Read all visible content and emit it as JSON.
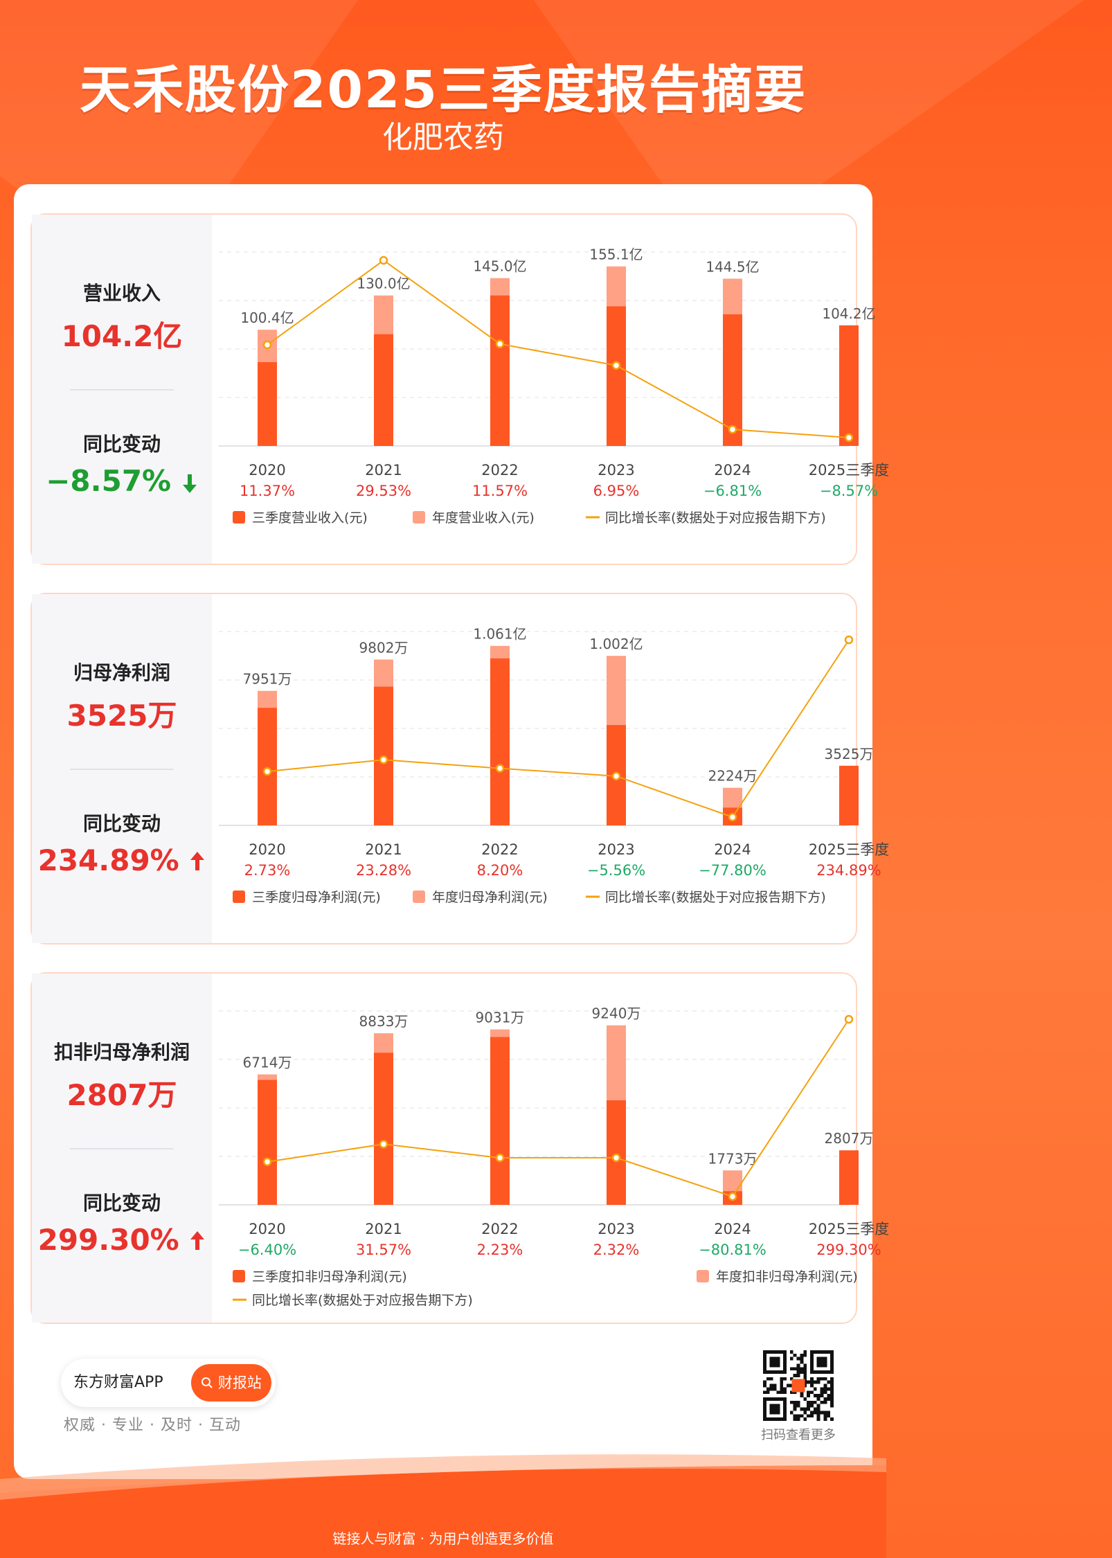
{
  "header": {
    "title": "天禾股份2025三季度报告摘要",
    "subtitle": "化肥农药"
  },
  "colors": {
    "q3": "#ff5722",
    "annual": "#ffa185",
    "line": "#f5a10c",
    "positive": "#e8322c",
    "negative": "#1fa967"
  },
  "sections": [
    {
      "label": "营业收入",
      "value": "104.2亿",
      "change_label": "同比变动",
      "change_value": "−8.57%",
      "change_arrow": "down"
    },
    {
      "label": "归母净利润",
      "value": "3525万",
      "change_label": "同比变动",
      "change_value": "234.89%",
      "change_arrow": "up"
    },
    {
      "label": "扣非归母净利润",
      "value": "2807万",
      "change_label": "同比变动",
      "change_value": "299.30%",
      "change_arrow": "up"
    }
  ],
  "chart_data": [
    {
      "type": "bar",
      "title": "营业收入",
      "categories": [
        "2020",
        "2021",
        "2022",
        "2023",
        "2024",
        "2025三季度"
      ],
      "unit": "亿元",
      "series": [
        {
          "name": "三季度营业收入(元)",
          "values": [
            72.4,
            96.5,
            130.0,
            120.6,
            113.7,
            104.2
          ]
        },
        {
          "name": "年度营业收入(元)",
          "values": [
            100.4,
            130.0,
            145.0,
            155.1,
            144.5,
            null
          ]
        }
      ],
      "data_labels": [
        "100.4亿",
        "130.0亿",
        "145.0亿",
        "155.1亿",
        "144.5亿",
        "104.2亿"
      ],
      "growth_line": {
        "name": "同比增长率(数据处于对应报告期下方)",
        "values": [
          11.37,
          29.53,
          11.57,
          6.95,
          -6.81,
          -8.57
        ]
      },
      "growth_labels": [
        "11.37%",
        "29.53%",
        "11.57%",
        "6.95%",
        "−6.81%",
        "−8.57%"
      ],
      "legend": [
        "三季度营业收入(元)",
        "年度营业收入(元)",
        "同比增长率(数据处于对应报告期下方)"
      ]
    },
    {
      "type": "bar",
      "title": "归母净利润",
      "categories": [
        "2020",
        "2021",
        "2022",
        "2023",
        "2024",
        "2025三季度"
      ],
      "unit": "万元",
      "series": [
        {
          "name": "三季度归母净利润(元)",
          "values": [
            6950,
            8200,
            9870,
            5930,
            1050,
            3525
          ]
        },
        {
          "name": "年度归母净利润(元)",
          "values": [
            7951,
            9802,
            10610,
            10020,
            2224,
            null
          ]
        }
      ],
      "data_labels": [
        "7951万",
        "9802万",
        "1.061亿",
        "1.002亿",
        "2224万",
        "3525万"
      ],
      "growth_line": {
        "name": "同比增长率(数据处于对应报告期下方)",
        "values": [
          2.73,
          23.28,
          8.2,
          -5.56,
          -77.8,
          234.89
        ]
      },
      "growth_labels": [
        "2.73%",
        "23.28%",
        "8.20%",
        "−5.56%",
        "−77.80%",
        "234.89%"
      ],
      "legend": [
        "三季度归母净利润(元)",
        "年度归母净利润(元)",
        "同比增长率(数据处于对应报告期下方)"
      ]
    },
    {
      "type": "bar",
      "title": "扣非归母净利润",
      "categories": [
        "2020",
        "2021",
        "2022",
        "2023",
        "2024",
        "2025三季度"
      ],
      "unit": "万元",
      "series": [
        {
          "name": "三季度扣非归母净利润(元)",
          "values": [
            6430,
            7830,
            8640,
            5380,
            703,
            2807
          ]
        },
        {
          "name": "年度扣非归母净利润(元)",
          "values": [
            6714,
            8833,
            9031,
            9240,
            1773,
            null
          ]
        }
      ],
      "data_labels": [
        "6714万",
        "8833万",
        "9031万",
        "9240万",
        "1773万",
        "2807万"
      ],
      "growth_line": {
        "name": "同比增长率(数据处于对应报告期下方)",
        "values": [
          -6.4,
          31.57,
          2.23,
          2.32,
          -80.81,
          299.3
        ]
      },
      "growth_labels": [
        "−6.40%",
        "31.57%",
        "2.23%",
        "2.32%",
        "−80.81%",
        "299.30%"
      ],
      "legend": [
        "三季度扣非归母净利润(元)",
        "年度扣非归母净利润(元)",
        "同比增长率(数据处于对应报告期下方)"
      ]
    }
  ],
  "footer": {
    "app_name": "东方财富APP",
    "button_label": "财报站",
    "tagline": "权威 · 专业 · 及时 · 互动",
    "qr_caption": "扫码查看更多",
    "bottom_slogan": "链接人与财富 · 为用户创造更多价值"
  }
}
